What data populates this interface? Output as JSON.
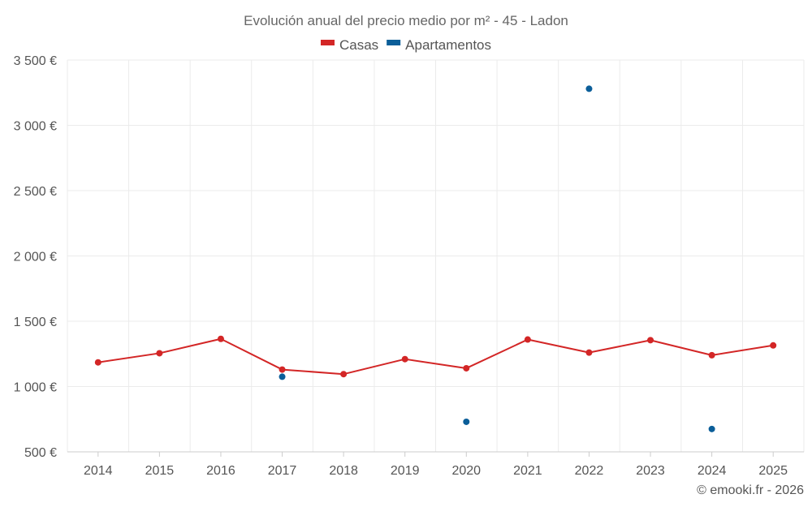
{
  "colors": {
    "casas": "#d32626",
    "apartamentos": "#0b5e99",
    "grid": "#ebebeb"
  },
  "chart_data": {
    "type": "line",
    "title": "Evolución anual del precio medio por m² - 45 - Ladon",
    "credit": "© emooki.fr - 2026",
    "categories": [
      "2014",
      "2015",
      "2016",
      "2017",
      "2018",
      "2019",
      "2020",
      "2021",
      "2022",
      "2023",
      "2024",
      "2025"
    ],
    "ylim": [
      500,
      3500
    ],
    "yticks": [
      500,
      1000,
      1500,
      2000,
      2500,
      3000,
      3500
    ],
    "ytick_labels": [
      "500 €",
      "1 000 €",
      "1 500 €",
      "2 000 €",
      "2 500 €",
      "3 000 €",
      "3 500 €"
    ],
    "grid": true,
    "legend_position": "top-center",
    "series": [
      {
        "name": "Casas",
        "color": "#d32626",
        "connected": true,
        "values": [
          1185,
          1255,
          1365,
          1130,
          1095,
          1210,
          1140,
          1360,
          1260,
          1355,
          1240,
          1315
        ]
      },
      {
        "name": "Apartamentos",
        "color": "#0b5e99",
        "connected": false,
        "values": [
          null,
          null,
          null,
          1075,
          null,
          null,
          730,
          null,
          3280,
          null,
          675,
          null
        ]
      }
    ]
  }
}
